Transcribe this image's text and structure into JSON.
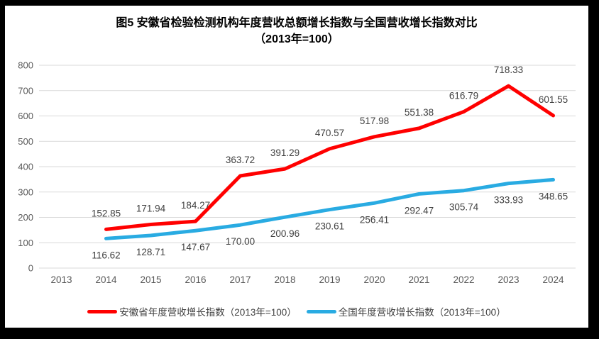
{
  "chart_data": {
    "type": "line",
    "title_lines": [
      "图5  安徽省检验检测机构年度营收总额增长指数与全国营收增长指数对比",
      "（2013年=100）"
    ],
    "categories": [
      "2013",
      "2014",
      "2015",
      "2016",
      "2017",
      "2018",
      "2019",
      "2020",
      "2021",
      "2022",
      "2023",
      "2024"
    ],
    "series": [
      {
        "name": "安徽省年度营收增长指数（2013年=100）",
        "color": "#FF0000",
        "label_position": "above",
        "values": [
          null,
          152.85,
          171.94,
          184.27,
          363.72,
          391.29,
          470.57,
          517.98,
          551.38,
          616.79,
          718.33,
          601.55
        ]
      },
      {
        "name": "全国年度营收增长指数（2013年=100）",
        "color": "#29ABE2",
        "label_position": "below",
        "values": [
          null,
          116.62,
          128.71,
          147.67,
          170.0,
          200.96,
          230.61,
          256.41,
          292.47,
          305.74,
          333.93,
          348.65
        ]
      }
    ],
    "ylim": [
      0,
      800
    ],
    "ytick_step": 100,
    "grid": "horizontal",
    "gridline_color": "#D9D9D9",
    "axis_label_color": "#595959",
    "data_label_color": "#404040",
    "label_decimals": 2,
    "legend_position": "bottom"
  }
}
